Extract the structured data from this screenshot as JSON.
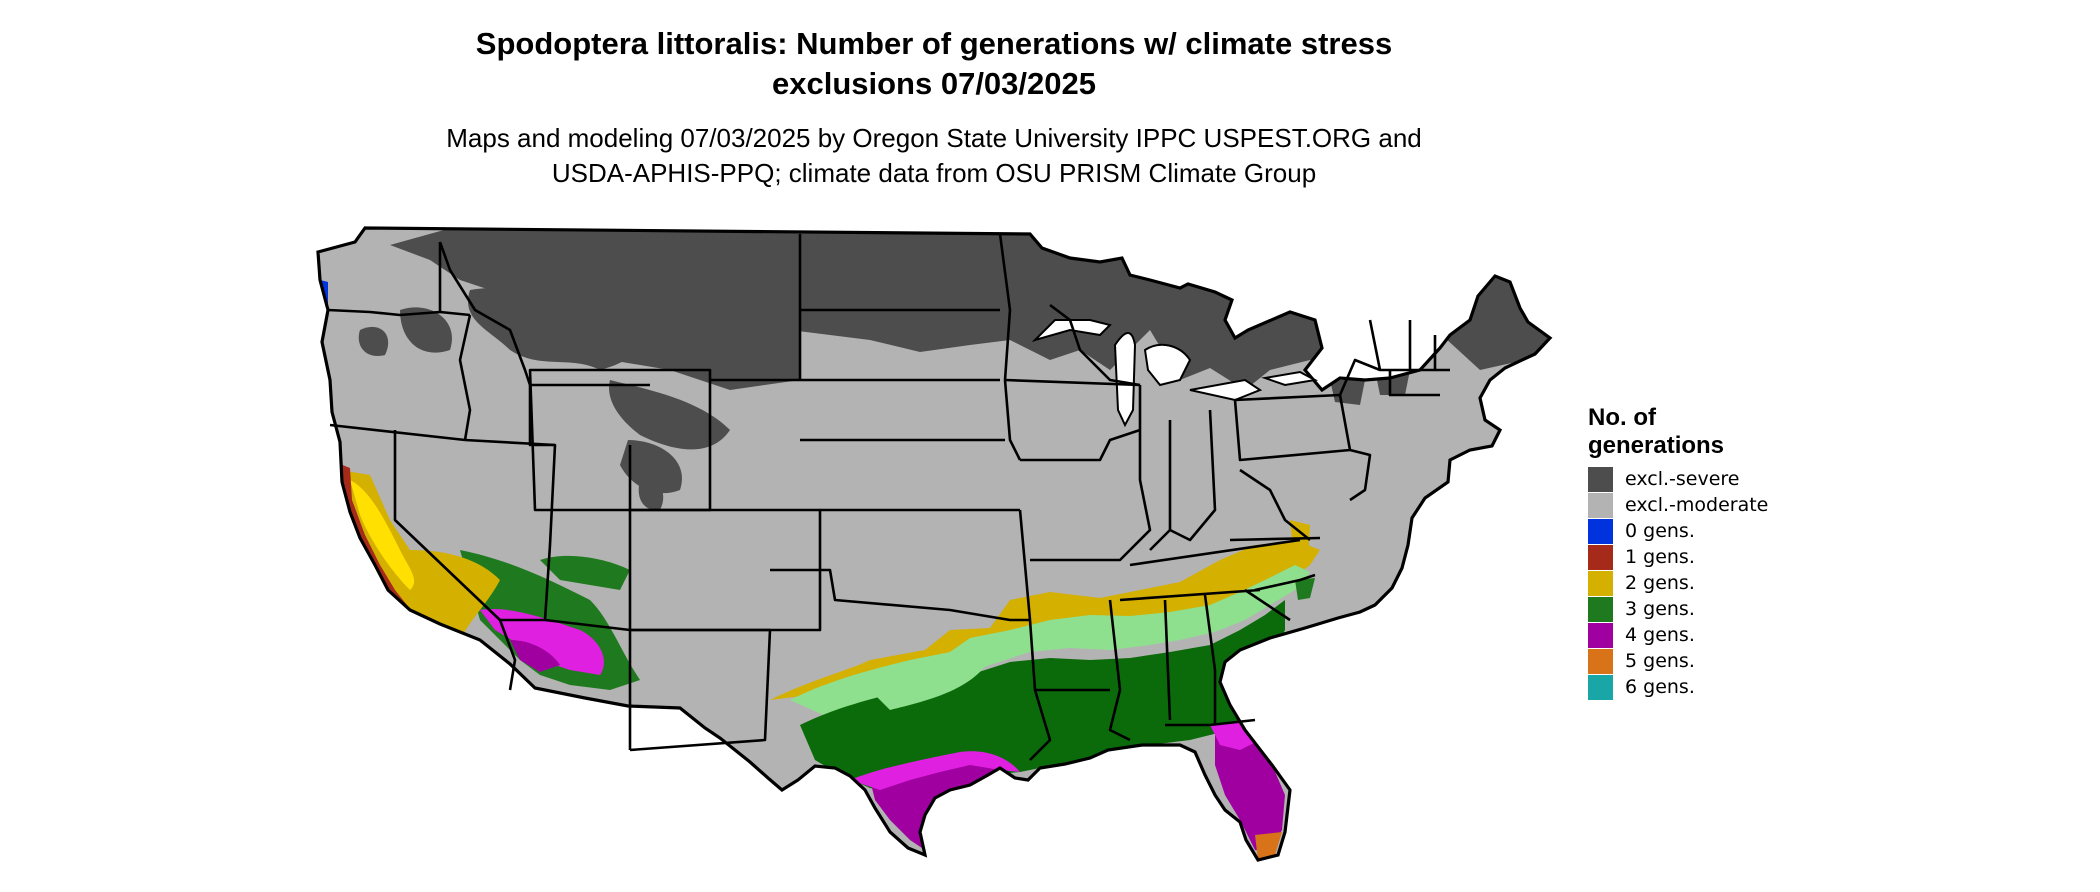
{
  "title_line1": "Spodoptera littoralis: Number of generations w/ climate stress",
  "title_line2": "exclusions 07/03/2025",
  "subtitle_line1": "Maps and modeling 07/03/2025 by Oregon State University IPPC USPEST.ORG and",
  "subtitle_line2": "USDA-APHIS-PPQ; climate data from OSU PRISM Climate Group",
  "legend": {
    "title_line1": "No. of",
    "title_line2": "generations",
    "items": [
      {
        "label": "excl.-severe",
        "color": "#4d4d4d"
      },
      {
        "label": "excl.-moderate",
        "color": "#b3b3b3"
      },
      {
        "label": "0 gens.",
        "color": "#0033dd"
      },
      {
        "label": "1 gens.",
        "color": "#a52a1a"
      },
      {
        "label": "2 gens.",
        "color": "#d4b000"
      },
      {
        "label": "3 gens.",
        "color": "#1f7a1f"
      },
      {
        "label": "4 gens.",
        "color": "#a000a0"
      },
      {
        "label": "5 gens.",
        "color": "#d8731a"
      },
      {
        "label": "6 gens.",
        "color": "#18a6a6"
      }
    ]
  },
  "map_colors": {
    "severe": "#4d4d4d",
    "moderate": "#b3b3b3",
    "light_green": "#8ee08e",
    "dark_green": "#0b6b0b",
    "magenta": "#e020e0",
    "state_border": "#000000"
  }
}
